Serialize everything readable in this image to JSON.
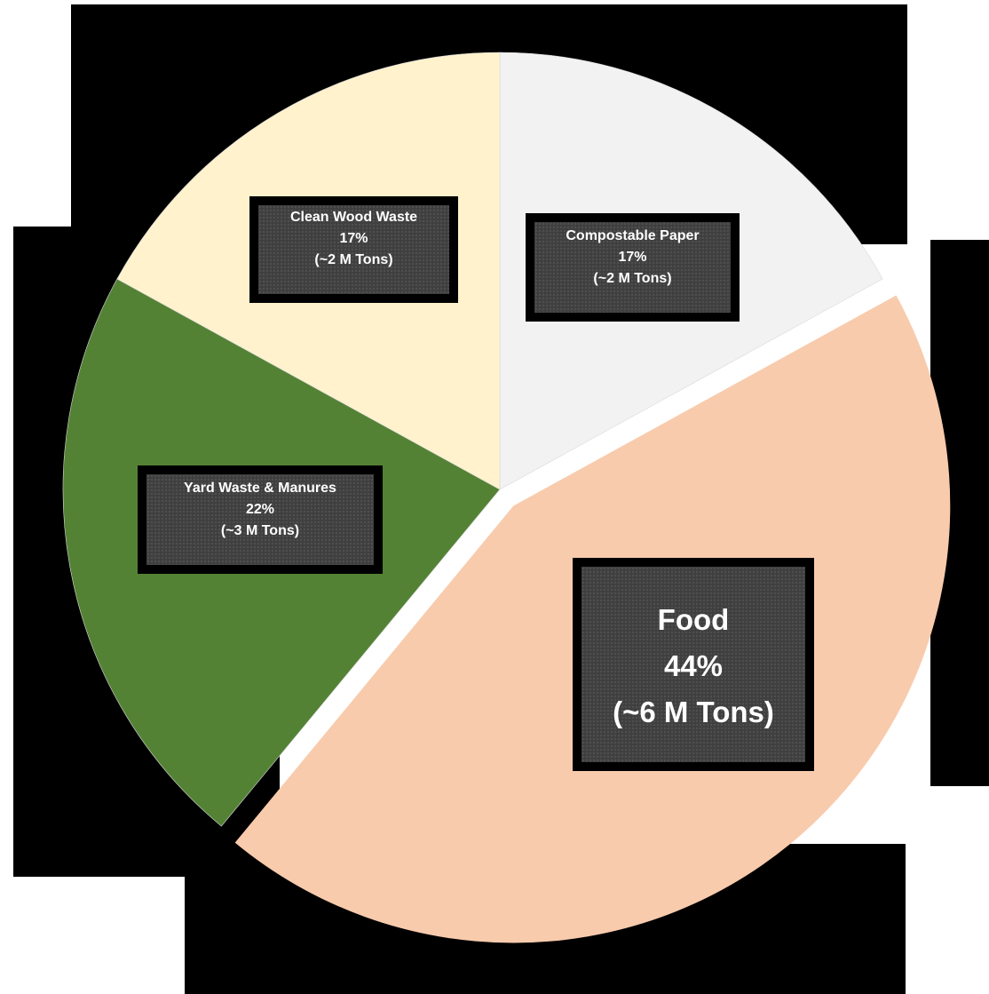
{
  "chart_data": {
    "type": "pie",
    "title": "",
    "start_angle_deg": 0,
    "direction": "clockwise",
    "slices": [
      {
        "name": "Compostable Paper",
        "percent_label": "17%",
        "tons_label": "(~2 M Tons)",
        "value": 17,
        "color": "#f2f2f2",
        "exploded": false
      },
      {
        "name": "Food",
        "percent_label": "44%",
        "tons_label": "(~6 M Tons)",
        "value": 44,
        "color": "#f8cbad",
        "exploded": true
      },
      {
        "name": "Yard Waste & Manures",
        "percent_label": "22%",
        "tons_label": "(~3 M Tons)",
        "value": 22,
        "color": "#548235",
        "exploded": false
      },
      {
        "name": "Clean Wood Waste",
        "percent_label": "17%",
        "tons_label": "(~2 M Tons)",
        "value": 17,
        "color": "#fff2cc",
        "exploded": false
      }
    ],
    "label_box_color": "#3f3f3f",
    "label_text_color": "#ffffff"
  }
}
